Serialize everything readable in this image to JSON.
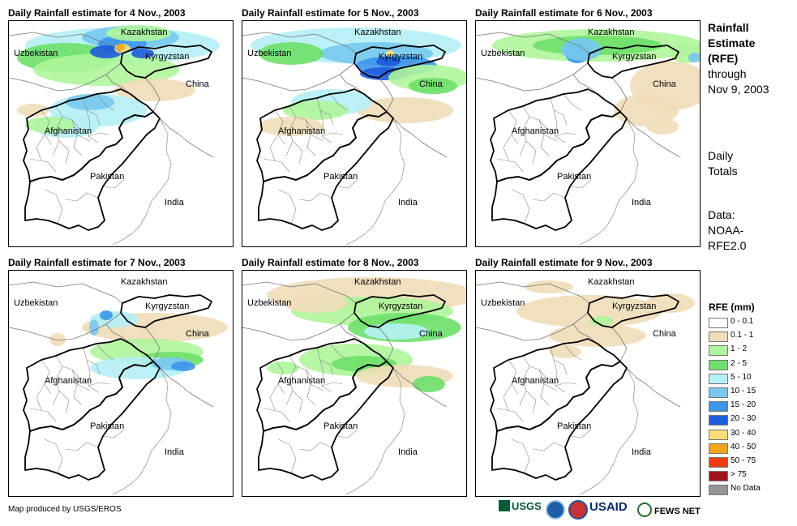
{
  "panels": [
    {
      "title": "Daily Rainfall estimate for 4 Nov., 2003",
      "rain": "p1"
    },
    {
      "title": "Daily Rainfall estimate for 5 Nov., 2003",
      "rain": "p2"
    },
    {
      "title": "Daily Rainfall estimate for 6 Nov., 2003",
      "rain": "p3"
    },
    {
      "title": "Daily Rainfall estimate for 7 Nov., 2003",
      "rain": "p4"
    },
    {
      "title": "Daily Rainfall estimate for 8 Nov., 2003",
      "rain": "p5"
    },
    {
      "title": "Daily Rainfall estimate for 9 Nov., 2003",
      "rain": "p6"
    }
  ],
  "map_labels": {
    "kazakhstan": "Kazakhstan",
    "uzbekistan": "Uzbekistan",
    "kyrgyzstan": "Kyrgyzstan",
    "china": "China",
    "afghanistan": "Afghanistan",
    "pakistan": "Pakistan",
    "india": "India"
  },
  "side_text": {
    "line1": "Rainfall",
    "line2": "Estimate",
    "line3": "(RFE)",
    "line4": "through",
    "line5": "Nov 9, 2003",
    "daily1": "Daily",
    "daily2": "Totals",
    "data1": "Data:",
    "data2": "NOAA-",
    "data3": "RFE2.0"
  },
  "legend": {
    "title": "RFE (mm)",
    "items": [
      {
        "label": "0 - 0.1",
        "color": "#ffffff"
      },
      {
        "label": "0.1 - 1",
        "color": "#f0ddb8"
      },
      {
        "label": "1 - 2",
        "color": "#aef59a"
      },
      {
        "label": "2 - 5",
        "color": "#6ee06a"
      },
      {
        "label": "5 - 10",
        "color": "#b4f0f5"
      },
      {
        "label": "10 - 15",
        "color": "#78c8f0"
      },
      {
        "label": "15 - 20",
        "color": "#3c96eb"
      },
      {
        "label": "20 - 30",
        "color": "#1e5adc"
      },
      {
        "label": "30 - 40",
        "color": "#fadc78"
      },
      {
        "label": "40 - 50",
        "color": "#f5a514"
      },
      {
        "label": "50 - 75",
        "color": "#f03c0a"
      },
      {
        "label": "> 75",
        "color": "#a0141e"
      },
      {
        "label": "No Data",
        "color": "#969696"
      }
    ]
  },
  "credit": "Map produced by USGS/EROS",
  "logos": {
    "usgs": "USGS",
    "usaid": "USAID",
    "fews": "FEWS NET"
  }
}
